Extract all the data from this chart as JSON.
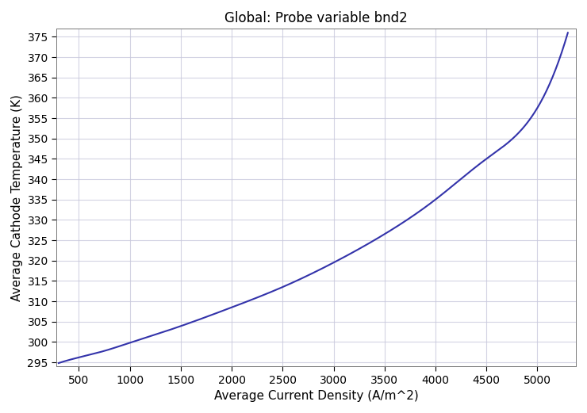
{
  "title": "Global: Probe variable bnd2",
  "xlabel": "Average Current Density (A/m^2)",
  "ylabel": "Average Cathode Temperature (K)",
  "xlim": [
    280,
    5380
  ],
  "ylim": [
    294,
    377
  ],
  "xticks": [
    500,
    1000,
    1500,
    2000,
    2500,
    3000,
    3500,
    4000,
    4500,
    5000
  ],
  "yticks": [
    295,
    300,
    305,
    310,
    315,
    320,
    325,
    330,
    335,
    340,
    345,
    350,
    355,
    360,
    365,
    370,
    375
  ],
  "control_points_x": [
    300,
    500,
    750,
    1000,
    1250,
    1500,
    2000,
    2500,
    3000,
    3500,
    4000,
    4500,
    5000,
    5300
  ],
  "control_points_y": [
    294.8,
    296.2,
    297.8,
    299.8,
    301.8,
    303.9,
    308.5,
    313.5,
    319.5,
    326.5,
    335.0,
    345.0,
    357.5,
    376.0
  ],
  "line_color": "#3333aa",
  "line_width": 1.5,
  "background_color": "#ffffff",
  "grid_color": "#c8c8dc",
  "grid_alpha": 0.8,
  "title_fontsize": 12,
  "label_fontsize": 11,
  "tick_fontsize": 10
}
